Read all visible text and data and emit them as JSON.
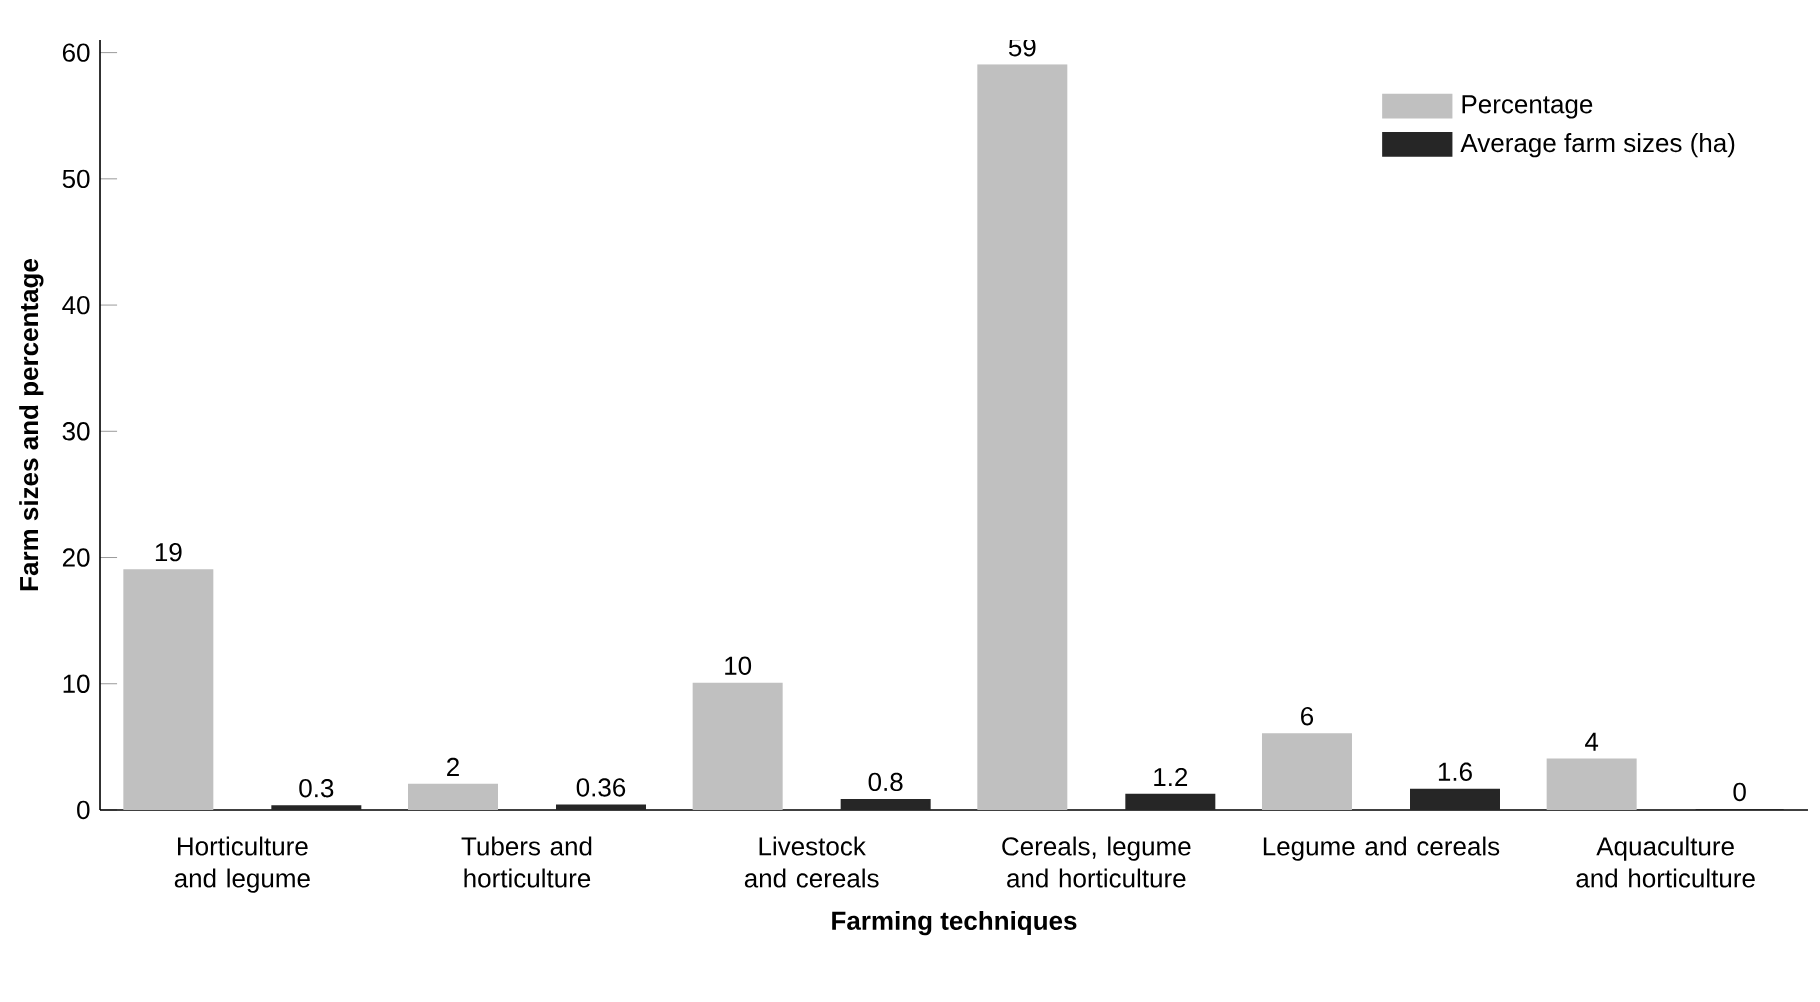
{
  "chart_data": {
    "type": "bar",
    "xlabel": "Farming techniques",
    "ylabel": "Farm sizes and percentage",
    "categories": [
      "Horticulture and legume",
      "Tubers and horticulture",
      "Livestock and cereals",
      "Cereals, legume and horticulture",
      "Legume and cereals",
      "Aquaculture and horticulture"
    ],
    "series": [
      {
        "name": "Percentage",
        "color": "#c0c0c0",
        "values": [
          19,
          2,
          10,
          59,
          6,
          4
        ]
      },
      {
        "name": "Average farm sizes (ha)",
        "color": "#262626",
        "values": [
          0.3,
          0.36,
          0.8,
          1.2,
          1.6,
          0
        ]
      }
    ],
    "ylim": [
      0,
      61
    ],
    "yticks": [
      0,
      10,
      20,
      30,
      40,
      50,
      60
    ],
    "data_labels": true,
    "legend": "top right",
    "grid": false
  }
}
